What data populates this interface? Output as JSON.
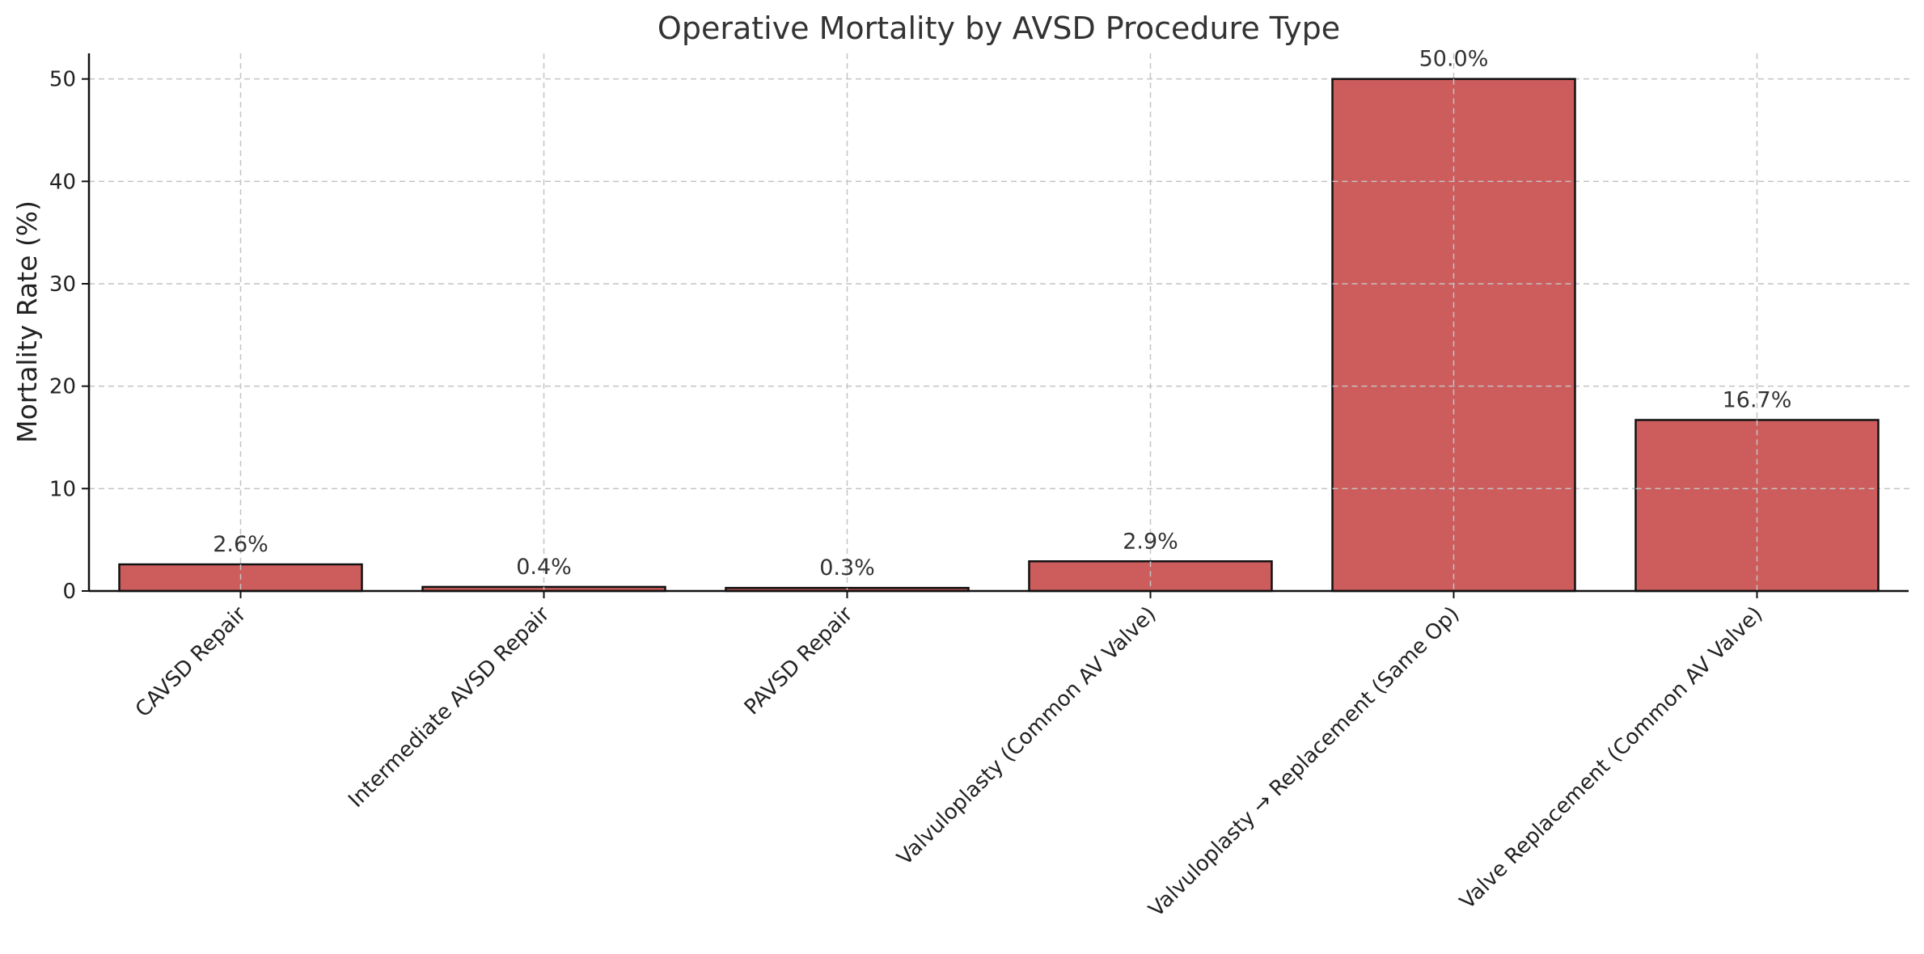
{
  "chart_data": {
    "type": "bar",
    "title": "Operative Mortality by AVSD Procedure Type",
    "xlabel": "",
    "ylabel": "Mortality Rate (%)",
    "categories": [
      "CAVSD Repair",
      "Intermediate AVSD Repair",
      "PAVSD Repair",
      "Valvuloplasty (Common AV Valve)",
      "Valvuloplasty → Replacement (Same Op)",
      "Valve Replacement (Common AV Valve)"
    ],
    "values": [
      2.6,
      0.4,
      0.3,
      2.9,
      50.0,
      16.7
    ],
    "data_labels": [
      "2.6%",
      "0.4%",
      "0.3%",
      "2.9%",
      "50.0%",
      "16.7%"
    ],
    "ylim": [
      0,
      52.5
    ],
    "yticks": [
      0,
      10,
      20,
      30,
      40,
      50
    ],
    "grid": true,
    "bar_color": "#cd5c5c",
    "edge_color": "#111111"
  }
}
